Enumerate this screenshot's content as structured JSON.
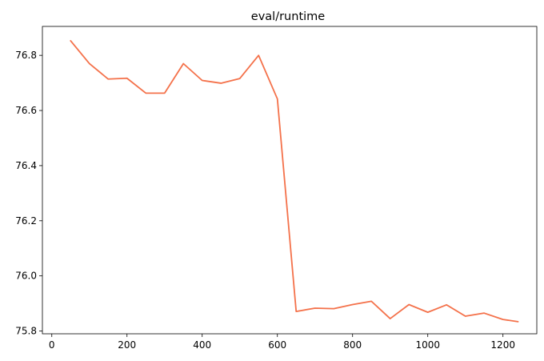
{
  "chart_data": {
    "type": "line",
    "title": "eval/runtime",
    "xlabel": "",
    "ylabel": "",
    "xlim": [
      -25,
      1290
    ],
    "ylim": [
      75.79,
      76.905
    ],
    "x_ticks": [
      0,
      200,
      400,
      600,
      800,
      1000,
      1200
    ],
    "x_tick_labels": [
      "0",
      "200",
      "400",
      "600",
      "800",
      "1000",
      "1200"
    ],
    "y_ticks": [
      75.8,
      76.0,
      76.2,
      76.4,
      76.6,
      76.8
    ],
    "y_tick_labels": [
      "75.8",
      "76.0",
      "76.2",
      "76.4",
      "76.6",
      "76.8"
    ],
    "grid": false,
    "legend": "none",
    "series": [
      {
        "color": "#f4714a",
        "x": [
          50,
          100,
          150,
          200,
          250,
          300,
          350,
          400,
          450,
          500,
          550,
          600,
          650,
          700,
          750,
          800,
          850,
          900,
          950,
          1000,
          1050,
          1100,
          1150,
          1200,
          1240
        ],
        "y": [
          76.853,
          76.77,
          76.714,
          76.717,
          76.663,
          76.663,
          76.77,
          76.709,
          76.699,
          76.716,
          76.8,
          76.642,
          75.871,
          75.883,
          75.881,
          75.896,
          75.908,
          75.845,
          75.896,
          75.868,
          75.895,
          75.854,
          75.865,
          75.842,
          75.834
        ]
      }
    ]
  }
}
